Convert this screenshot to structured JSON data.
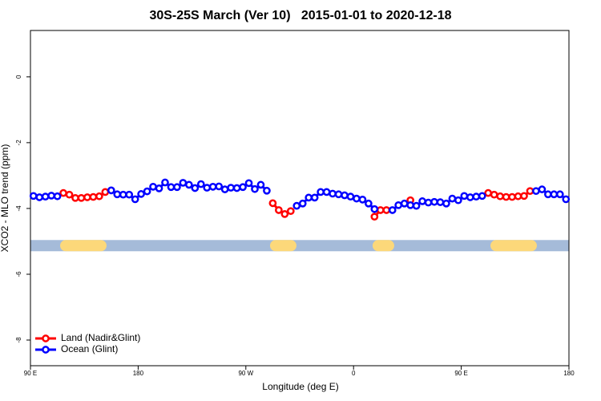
{
  "chart_data": {
    "type": "line",
    "title": "30S-25S March (Ver 10)   2015-01-01 to 2020-12-18",
    "x_label": "Longitude (deg E)",
    "y_label": "XCO2 - MLO trend (ppm)",
    "xlim": [
      90,
      540
    ],
    "xticks": [
      {
        "value": 90,
        "label": "90 E"
      },
      {
        "value": 180,
        "label": "180"
      },
      {
        "value": 270,
        "label": "90 W"
      },
      {
        "value": 360,
        "label": "0"
      },
      {
        "value": 450,
        "label": "90 E"
      },
      {
        "value": 540,
        "label": "180"
      }
    ],
    "ylim": [
      -8.78,
      1.41
    ],
    "yticks": [
      0,
      -2,
      -4,
      -6,
      -8
    ],
    "legend": "bottom-left",
    "mask_y": -5.13,
    "land_ranges": [
      [
        114.8,
        153.6
      ],
      [
        290.2,
        312.3
      ],
      [
        375.9,
        394
      ],
      [
        474.4,
        513.2
      ]
    ],
    "x": [
      92.5,
      97.5,
      102.5,
      107.5,
      112.5,
      117.5,
      122.5,
      127.5,
      132.5,
      137.5,
      142.5,
      147.5,
      152.5,
      157.5,
      162.5,
      167.5,
      172.5,
      177.5,
      182.5,
      187.5,
      192.5,
      197.5,
      202.5,
      207.5,
      212.5,
      217.5,
      222.5,
      227.5,
      232.5,
      237.5,
      242.5,
      247.5,
      252.5,
      257.5,
      262.5,
      267.5,
      272.5,
      277.5,
      282.5,
      287.5,
      292.5,
      297.5,
      302.5,
      307.5,
      312.5,
      317.5,
      322.5,
      327.5,
      332.5,
      337.5,
      342.5,
      347.5,
      352.5,
      357.5,
      362.5,
      367.5,
      372.5,
      377.5,
      382.5,
      387.5,
      392.5,
      397.5,
      402.5,
      407.5,
      412.5,
      417.5,
      422.5,
      427.5,
      432.5,
      437.5,
      442.5,
      447.5,
      452.5,
      457.5,
      462.5,
      467.5,
      472.5,
      477.5,
      482.5,
      487.5,
      492.5,
      497.5,
      502.5,
      507.5,
      512.5,
      517.5,
      522.5,
      527.5,
      532.5,
      537.5
    ],
    "series": [
      {
        "name": "Land (Nadir&Glint)",
        "color": "#ff0000",
        "values": [
          null,
          null,
          null,
          null,
          null,
          -3.53,
          -3.58,
          -3.68,
          -3.68,
          -3.66,
          -3.65,
          -3.63,
          -3.5,
          null,
          null,
          null,
          null,
          null,
          null,
          null,
          null,
          null,
          null,
          null,
          null,
          null,
          null,
          null,
          null,
          null,
          null,
          null,
          null,
          null,
          null,
          null,
          null,
          null,
          null,
          null,
          -3.84,
          -4.05,
          -4.17,
          -4.08,
          null,
          null,
          null,
          null,
          null,
          null,
          null,
          null,
          null,
          null,
          null,
          null,
          null,
          -4.25,
          -4.05,
          -4.05,
          null,
          null,
          null,
          -3.75,
          null,
          null,
          null,
          null,
          null,
          null,
          null,
          null,
          null,
          null,
          null,
          null,
          -3.53,
          -3.58,
          -3.63,
          -3.65,
          -3.65,
          -3.63,
          -3.62,
          -3.47,
          null,
          null,
          null,
          null,
          null,
          null
        ]
      },
      {
        "name": "Ocean (Glint)",
        "color": "#0000ff",
        "values": [
          -3.62,
          -3.66,
          -3.64,
          -3.61,
          -3.63,
          null,
          null,
          null,
          null,
          null,
          null,
          null,
          null,
          -3.45,
          -3.57,
          -3.58,
          -3.58,
          -3.72,
          -3.56,
          -3.48,
          -3.34,
          -3.39,
          -3.21,
          -3.35,
          -3.35,
          -3.22,
          -3.28,
          -3.38,
          -3.26,
          -3.37,
          -3.34,
          -3.33,
          -3.42,
          -3.37,
          -3.38,
          -3.35,
          -3.23,
          -3.41,
          -3.28,
          -3.46,
          null,
          null,
          null,
          null,
          -3.92,
          -3.85,
          -3.67,
          -3.67,
          -3.5,
          -3.5,
          -3.55,
          -3.57,
          -3.6,
          -3.64,
          -3.7,
          -3.73,
          -3.85,
          -4.02,
          null,
          null,
          -4.05,
          -3.9,
          -3.85,
          -3.9,
          -3.92,
          -3.78,
          -3.82,
          -3.8,
          -3.81,
          -3.85,
          -3.7,
          -3.75,
          -3.62,
          -3.66,
          -3.64,
          -3.62,
          null,
          null,
          null,
          null,
          null,
          null,
          null,
          null,
          -3.47,
          -3.42,
          -3.57,
          -3.57,
          -3.57,
          -3.72
        ]
      }
    ]
  }
}
